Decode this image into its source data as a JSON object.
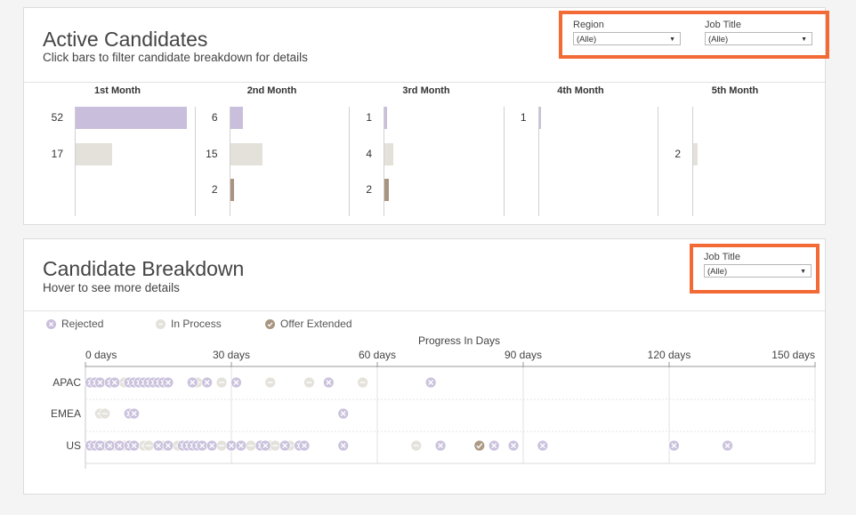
{
  "top_panel": {
    "title": "Active Candidates",
    "subtitle": "Click bars to filter candidate breakdown for details",
    "filters": [
      {
        "label": "Region",
        "value": "(Alle)"
      },
      {
        "label": "Job Title",
        "value": "(Alle)"
      }
    ]
  },
  "bottom_panel": {
    "title": "Candidate Breakdown",
    "subtitle": "Hover to see more details",
    "filter": {
      "label": "Job Title",
      "value": "(Alle)"
    }
  },
  "colors": {
    "rejected": "#c9bfdc",
    "in_process": "#e4e1da",
    "offer_extended": "#a89580",
    "highlight": "#f26a35"
  },
  "chart_data": [
    {
      "type": "bar",
      "orientation": "horizontal",
      "categories": [
        "1st Month",
        "2nd Month",
        "3rd Month",
        "4th Month",
        "5th Month"
      ],
      "series": [
        {
          "key": "rejected",
          "values": [
            52,
            6,
            1,
            1,
            null
          ]
        },
        {
          "key": "in_process",
          "values": [
            17,
            15,
            4,
            null,
            2
          ]
        },
        {
          "key": "offer_extended",
          "values": [
            null,
            2,
            2,
            null,
            null
          ]
        }
      ]
    },
    {
      "type": "scatter",
      "title": "Progress In Days",
      "xlabel": "Progress In Days",
      "x_ticks": [
        "0 days",
        "30 days",
        "60 days",
        "90 days",
        "120 days",
        "150 days"
      ],
      "xlim": [
        0,
        150
      ],
      "categories": [
        "APAC",
        "EMEA",
        "US"
      ],
      "legend": {
        "position": "top-left",
        "entries": [
          "Rejected",
          "In Process",
          "Offer Extended"
        ]
      },
      "grid": true,
      "series": [
        {
          "name": "Rejected",
          "key": "rejected",
          "points": [
            [
              "APAC",
              1
            ],
            [
              "APAC",
              2
            ],
            [
              "APAC",
              3
            ],
            [
              "APAC",
              5
            ],
            [
              "APAC",
              6
            ],
            [
              "APAC",
              9
            ],
            [
              "APAC",
              10
            ],
            [
              "APAC",
              11
            ],
            [
              "APAC",
              12
            ],
            [
              "APAC",
              13
            ],
            [
              "APAC",
              14
            ],
            [
              "APAC",
              15
            ],
            [
              "APAC",
              16
            ],
            [
              "APAC",
              17
            ],
            [
              "APAC",
              22
            ],
            [
              "APAC",
              25
            ],
            [
              "APAC",
              31
            ],
            [
              "APAC",
              50
            ],
            [
              "APAC",
              71
            ],
            [
              "EMEA",
              9
            ],
            [
              "EMEA",
              10
            ],
            [
              "EMEA",
              53
            ],
            [
              "US",
              1
            ],
            [
              "US",
              2
            ],
            [
              "US",
              3
            ],
            [
              "US",
              5
            ],
            [
              "US",
              7
            ],
            [
              "US",
              9
            ],
            [
              "US",
              10
            ],
            [
              "US",
              15
            ],
            [
              "US",
              17
            ],
            [
              "US",
              20
            ],
            [
              "US",
              21
            ],
            [
              "US",
              22
            ],
            [
              "US",
              23
            ],
            [
              "US",
              24
            ],
            [
              "US",
              26
            ],
            [
              "US",
              30
            ],
            [
              "US",
              32
            ],
            [
              "US",
              36
            ],
            [
              "US",
              37
            ],
            [
              "US",
              41
            ],
            [
              "US",
              44
            ],
            [
              "US",
              45
            ],
            [
              "US",
              53
            ],
            [
              "US",
              73
            ],
            [
              "US",
              84
            ],
            [
              "US",
              88
            ],
            [
              "US",
              94
            ],
            [
              "US",
              121
            ],
            [
              "US",
              132
            ]
          ]
        },
        {
          "name": "In Process",
          "key": "in_process",
          "points": [
            [
              "APAC",
              8
            ],
            [
              "APAC",
              23
            ],
            [
              "APAC",
              28
            ],
            [
              "APAC",
              38
            ],
            [
              "APAC",
              46
            ],
            [
              "APAC",
              57
            ],
            [
              "EMEA",
              3
            ],
            [
              "EMEA",
              4
            ],
            [
              "US",
              4
            ],
            [
              "US",
              6
            ],
            [
              "US",
              8
            ],
            [
              "US",
              12
            ],
            [
              "US",
              13
            ],
            [
              "US",
              16
            ],
            [
              "US",
              19
            ],
            [
              "US",
              28
            ],
            [
              "US",
              34
            ],
            [
              "US",
              38
            ],
            [
              "US",
              39
            ],
            [
              "US",
              42
            ],
            [
              "US",
              68
            ]
          ]
        },
        {
          "name": "Offer Extended",
          "key": "offer_extended",
          "points": [
            [
              "US",
              81
            ]
          ]
        }
      ]
    }
  ]
}
